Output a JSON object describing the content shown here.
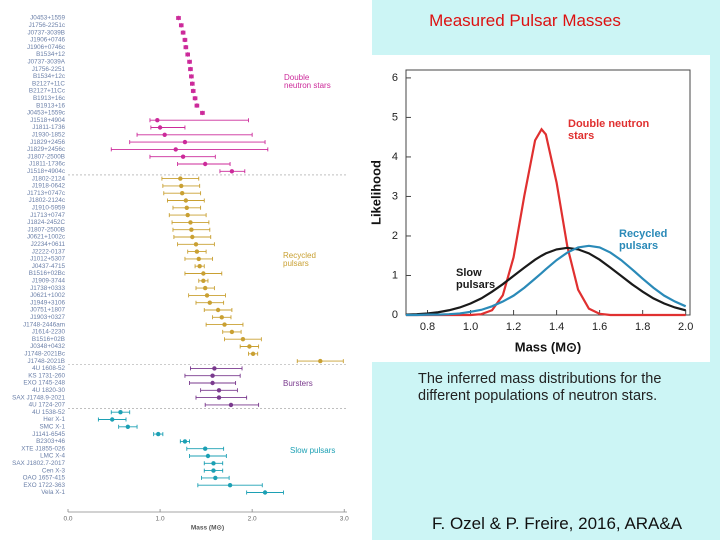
{
  "title": "Measured Pulsar Masses",
  "caption": "The inferred mass distributions for the different populations of neutron stars.",
  "credit": "F. Ozel & P. Freire, 2016, ARA&A",
  "chart_data": [
    {
      "type": "dot-errorbar",
      "xlabel": "Mass (M⊙)",
      "xlim": [
        0,
        3.03
      ],
      "xticks": [
        {
          "value": 0,
          "label": "0.0"
        },
        {
          "value": 1,
          "label": "1.0"
        },
        {
          "value": 2,
          "label": "2.0"
        },
        {
          "value": 3,
          "label": "3.0"
        }
      ],
      "series": [
        {
          "name": "Double neutron stars",
          "color": "#cc2a9a",
          "categories": [
            "J0453+1559",
            "J1756-2251c",
            "J0737-3039B",
            "J1906+0746",
            "J1906+0746c",
            "B1534+12",
            "J0737-3039A",
            "J1756-2251",
            "B1534+12c",
            "B2127+11C",
            "B2127+11Cc",
            "B1913+16c",
            "B1913+16",
            "J0453+1559c",
            "J1518+4904",
            "J1811-1736",
            "J1930-1852",
            "J1829+2456",
            "J1829+2456c",
            "J1807-2500B",
            "J1811-1736c",
            "J1518+4904c"
          ],
          "values": [
            1.2,
            1.23,
            1.25,
            1.27,
            1.28,
            1.3,
            1.32,
            1.33,
            1.34,
            1.35,
            1.36,
            1.38,
            1.4,
            1.46,
            0.97,
            1.0,
            1.05,
            1.27,
            1.17,
            1.25,
            1.49,
            1.78
          ],
          "err_low": [
            0.02,
            0.02,
            0.02,
            0.02,
            0.02,
            0.02,
            0.02,
            0.02,
            0.02,
            0.02,
            0.02,
            0.02,
            0.02,
            0.02,
            0.08,
            0.1,
            0.3,
            0.6,
            0.7,
            0.36,
            0.3,
            0.13
          ],
          "err_high": [
            0.02,
            0.02,
            0.02,
            0.02,
            0.02,
            0.02,
            0.02,
            0.02,
            0.02,
            0.02,
            0.02,
            0.02,
            0.02,
            0.02,
            0.99,
            0.27,
            0.95,
            0.87,
            1.0,
            0.35,
            0.27,
            0.14
          ]
        },
        {
          "name": "Recycled pulsars",
          "color": "#c9a032",
          "categories": [
            "J1802-2124",
            "J1918-0642",
            "J1713+0747c",
            "J1802-2124c",
            "J1910-5959",
            "J1713+0747",
            "J1824-2452C",
            "J1807-2500B",
            "J0621+1002c",
            "J2234+0611",
            "J2222-0137",
            "J1012+5307",
            "J0437-4715",
            "B1516+02Bc",
            "J1909-3744",
            "J1738+0333",
            "J0621+1002",
            "J1949+3106",
            "J0751+1807",
            "J1903+0327",
            "J1748-2446am",
            "J1614-2230",
            "B1516+02B",
            "J0348+0432",
            "J1748-2021Bc",
            "J1748-2021B"
          ],
          "values": [
            1.22,
            1.23,
            1.24,
            1.28,
            1.29,
            1.3,
            1.33,
            1.34,
            1.35,
            1.39,
            1.4,
            1.42,
            1.43,
            1.47,
            1.47,
            1.49,
            1.51,
            1.54,
            1.63,
            1.67,
            1.7,
            1.78,
            1.9,
            1.97,
            2.01,
            2.74
          ],
          "err_low": [
            0.2,
            0.2,
            0.2,
            0.2,
            0.15,
            0.2,
            0.2,
            0.2,
            0.2,
            0.2,
            0.1,
            0.15,
            0.05,
            0.2,
            0.05,
            0.1,
            0.2,
            0.15,
            0.15,
            0.1,
            0.2,
            0.1,
            0.2,
            0.1,
            0.05,
            0.25
          ],
          "err_high": [
            0.2,
            0.2,
            0.2,
            0.2,
            0.15,
            0.2,
            0.2,
            0.2,
            0.2,
            0.2,
            0.1,
            0.15,
            0.05,
            0.2,
            0.05,
            0.1,
            0.2,
            0.15,
            0.15,
            0.1,
            0.2,
            0.1,
            0.2,
            0.1,
            0.05,
            0.25
          ]
        },
        {
          "name": "Bursters",
          "color": "#7a3a8e",
          "categories": [
            "4U 1608-52",
            "KS 1731-260",
            "EXO 1745-248",
            "4U 1820-30",
            "SAX J1748.9-2021",
            "4U 1724-207"
          ],
          "values": [
            1.59,
            1.57,
            1.57,
            1.64,
            1.64,
            1.77
          ],
          "err_low": [
            0.26,
            0.3,
            0.25,
            0.2,
            0.25,
            0.28
          ],
          "err_high": [
            0.3,
            0.3,
            0.25,
            0.2,
            0.3,
            0.3
          ]
        },
        {
          "name": "Slow pulsars",
          "color": "#1ca0b4",
          "categories": [
            "4U 1538-52",
            "Her X-1",
            "SMC X-1",
            "J1141-6545",
            "B2303+46",
            "XTE J1855-026",
            "LMC X-4",
            "SAX J1802.7-2017",
            "Cen X-3",
            "OAO 1657-415",
            "EXO 1722-363",
            "Vela X-1"
          ],
          "values": [
            0.57,
            0.48,
            0.65,
            0.98,
            1.27,
            1.49,
            1.52,
            1.58,
            1.58,
            1.6,
            1.76,
            2.14
          ],
          "err_low": [
            0.1,
            0.15,
            0.1,
            0.05,
            0.05,
            0.2,
            0.2,
            0.1,
            0.1,
            0.15,
            0.35,
            0.2
          ],
          "err_high": [
            0.1,
            0.15,
            0.1,
            0.05,
            0.05,
            0.2,
            0.2,
            0.1,
            0.1,
            0.15,
            0.35,
            0.2
          ]
        }
      ]
    },
    {
      "type": "line",
      "xlabel": "Mass (M⊙)",
      "ylabel": "Likelihood",
      "xlim": [
        0.7,
        2.02
      ],
      "ylim": [
        0,
        6.2
      ],
      "xticks": [
        0.8,
        {
          "value": 1,
          "label": "1.0"
        },
        1.2,
        1.4,
        1.6,
        1.8,
        {
          "value": 2,
          "label": "2.0"
        }
      ],
      "yticks": [
        0,
        1,
        2,
        3,
        4,
        5,
        6
      ],
      "x": [
        0.7,
        0.75,
        0.8,
        0.85,
        0.9,
        0.95,
        1.0,
        1.05,
        1.1,
        1.15,
        1.2,
        1.25,
        1.3,
        1.33,
        1.35,
        1.4,
        1.45,
        1.5,
        1.55,
        1.6,
        1.65,
        1.7,
        1.75,
        1.8,
        1.85,
        1.9,
        1.95,
        2.0
      ],
      "series": [
        {
          "name": "Double neutron stars",
          "color": "#e03030",
          "values": [
            0,
            0,
            0,
            0,
            0,
            0,
            0,
            0.02,
            0.12,
            0.5,
            1.46,
            3.02,
            4.42,
            4.7,
            4.57,
            3.35,
            1.73,
            0.64,
            0.16,
            0.03,
            0,
            0,
            0,
            0,
            0,
            0,
            0,
            0
          ]
        },
        {
          "name": "Slow pulsars",
          "color": "#1a1a1a",
          "values": [
            0.01,
            0.02,
            0.04,
            0.07,
            0.12,
            0.19,
            0.29,
            0.42,
            0.59,
            0.78,
            0.99,
            1.2,
            1.4,
            1.5,
            1.56,
            1.66,
            1.7,
            1.66,
            1.56,
            1.4,
            1.2,
            0.99,
            0.78,
            0.59,
            0.42,
            0.29,
            0.19,
            0.12
          ]
        },
        {
          "name": "Recycled pulsars",
          "color": "#2a8ab8",
          "values": [
            0,
            0,
            0.01,
            0.01,
            0.02,
            0.04,
            0.08,
            0.13,
            0.22,
            0.34,
            0.49,
            0.69,
            0.92,
            1.06,
            1.16,
            1.39,
            1.58,
            1.71,
            1.75,
            1.71,
            1.58,
            1.39,
            1.16,
            0.92,
            0.69,
            0.49,
            0.34,
            0.22
          ]
        }
      ]
    }
  ]
}
